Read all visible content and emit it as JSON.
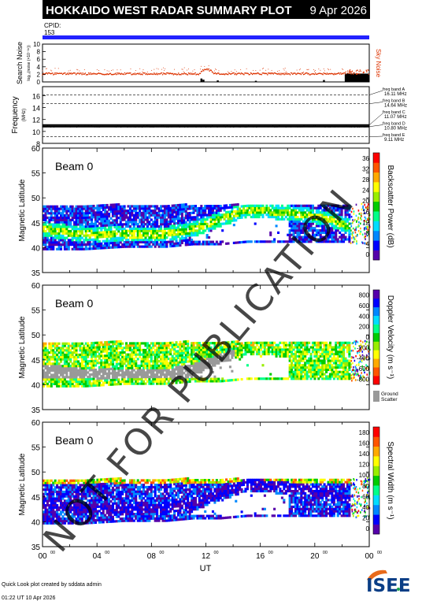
{
  "header": {
    "title": "HOKKAIDO WEST RADAR SUMMARY PLOT",
    "date": "9 Apr 2026",
    "cpid_label": "CPID:",
    "cpid_value": "153"
  },
  "noise_panel": {
    "ylabel_main": "Search Noise",
    "ylabel_sub": "log₁₀(noise (×10⁻³⁶))",
    "legend": "Sky Noise",
    "yticks": [
      "0",
      "2",
      "4",
      "6",
      "8",
      "10"
    ],
    "ylim": [
      0,
      10
    ]
  },
  "freq_panel": {
    "ylabel_main": "Frequency",
    "ylabel_sub": "(MHz)",
    "yticks": [
      "8",
      "10",
      "12",
      "14",
      "16"
    ],
    "ylim": [
      8,
      17.5
    ],
    "bands": [
      {
        "label": "freq band A",
        "value": "16.11 MHz",
        "mhz": 16.11
      },
      {
        "label": "freq band B",
        "value": "14.64 MHz",
        "mhz": 14.64
      },
      {
        "label": "freq band C",
        "value": "11.07 MHz",
        "mhz": 11.07
      },
      {
        "label": "freq band D",
        "value": "10.80 MHz",
        "mhz": 10.8
      },
      {
        "label": "freq band E",
        "value": "9.11 MHz",
        "mhz": 9.11
      }
    ]
  },
  "panels": [
    {
      "beam": "Beam  0",
      "ylabel": "Magnetic Latitude",
      "cbar_label": "Backscatter Power (dB)",
      "cbar_ticks": [
        "0",
        "4",
        "8",
        "12",
        "16",
        "20",
        "24",
        "28",
        "32",
        "36"
      ],
      "colors": [
        "#5500aa",
        "#0000ff",
        "#0088ff",
        "#00ddff",
        "#00ff88",
        "#00cc00",
        "#99ee00",
        "#ffff00",
        "#ffaa00",
        "#ff5500",
        "#ff0000"
      ],
      "ground": null
    },
    {
      "beam": "Beam  0",
      "ylabel": "Magnetic Latitude",
      "cbar_label": "Doppler Velocity (m s⁻¹)",
      "cbar_ticks": [
        "-800",
        "-600",
        "-400",
        "-200",
        "0",
        "200",
        "400",
        "600",
        "800"
      ],
      "colors": [
        "#ff0000",
        "#ff5500",
        "#ffaa00",
        "#ffff00",
        "#99ee00",
        "#00cc00",
        "#00ff88",
        "#00ddff",
        "#0088ff",
        "#0000ff",
        "#5500aa"
      ],
      "ground": "Ground Scatter"
    },
    {
      "beam": "Beam  0",
      "ylabel": "Magnetic Latitude",
      "cbar_label": "Spectral Width (m s⁻¹)",
      "cbar_ticks": [
        "0",
        "20",
        "40",
        "60",
        "80",
        "100",
        "120",
        "140",
        "160",
        "180"
      ],
      "colors": [
        "#5500aa",
        "#0000ff",
        "#0088ff",
        "#00ddff",
        "#00ff88",
        "#00cc00",
        "#99ee00",
        "#ffff00",
        "#ffaa00",
        "#ff5500",
        "#ff0000"
      ],
      "ground": null
    }
  ],
  "lat_ticks": [
    "35",
    "40",
    "45",
    "50",
    "55",
    "60"
  ],
  "lat_lim": [
    35,
    60
  ],
  "time_ticks": [
    "00",
    "04",
    "08",
    "12",
    "16",
    "20",
    "00"
  ],
  "time_sup": "00",
  "xlabel": "UT",
  "watermark": "NOT FOR PUBLICATION",
  "footer": {
    "line1": "Quick Look plot created by sddata admin",
    "line2": "01:22 UT 10 Apr 2026"
  },
  "logo": "ISEE",
  "chart_data": {
    "type": "heatmap",
    "title": "HOKKAIDO WEST RADAR SUMMARY PLOT",
    "xlabel": "UT",
    "ylabel": "Magnetic Latitude",
    "xlim": [
      0,
      24
    ],
    "ylim": [
      35,
      60
    ],
    "series": [
      {
        "name": "Backscatter Power (dB)",
        "range": [
          0,
          36
        ]
      },
      {
        "name": "Doppler Velocity (m s⁻¹)",
        "range": [
          -800,
          800
        ]
      },
      {
        "name": "Spectral Width (m s⁻¹)",
        "range": [
          0,
          180
        ]
      }
    ],
    "scatter_extent": {
      "x_ut": [
        0,
        3,
        6,
        9,
        11,
        13,
        15,
        17,
        19,
        21,
        22.5
      ],
      "lat_low": [
        39.5,
        39.5,
        40,
        40,
        40.5,
        40.5,
        41,
        41,
        41,
        41,
        41
      ],
      "lat_high": [
        48.5,
        48.5,
        48.5,
        48.5,
        48.5,
        48.5,
        48.5,
        48.5,
        48.5,
        48.5,
        48.5
      ],
      "band_lat": [
        43.5,
        42.5,
        42.5,
        42.5,
        43.5,
        45.5,
        47.5,
        47.0,
        46.5,
        45.5,
        44.0
      ]
    }
  }
}
